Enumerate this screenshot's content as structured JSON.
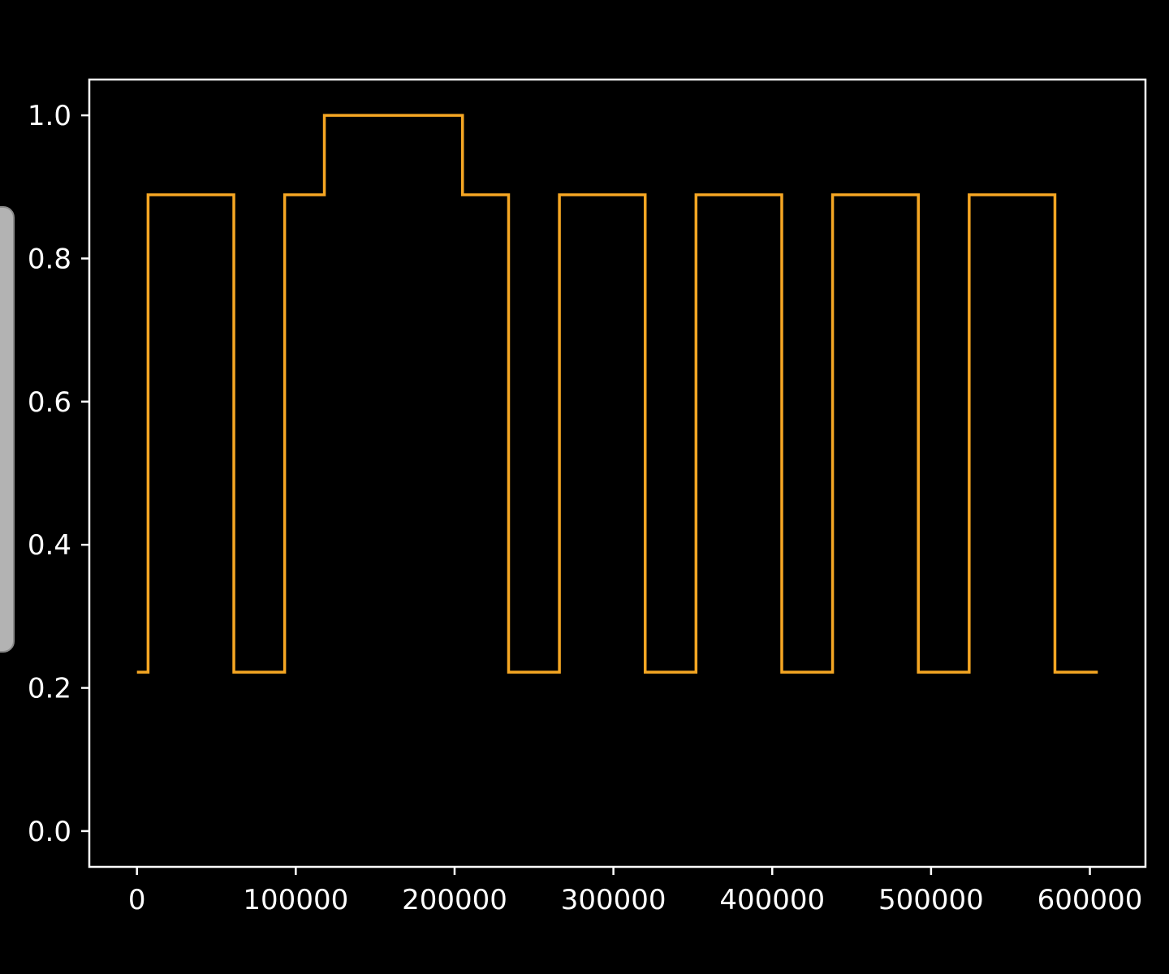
{
  "chart_data": {
    "type": "line",
    "drawstyle": "steps-post",
    "title": "",
    "xlabel": "",
    "ylabel": "",
    "xlim": [
      -30000,
      635000
    ],
    "ylim": [
      -0.05,
      1.05
    ],
    "grid": false,
    "x_ticks": [
      0,
      100000,
      200000,
      300000,
      400000,
      500000,
      600000
    ],
    "x_tick_labels": [
      "0",
      "100000",
      "200000",
      "300000",
      "400000",
      "500000",
      "600000"
    ],
    "y_ticks": [
      0.0,
      0.2,
      0.4,
      0.6,
      0.8,
      1.0
    ],
    "y_tick_labels": [
      "0.0",
      "0.2",
      "0.4",
      "0.6",
      "0.8",
      "1.0"
    ],
    "series": [
      {
        "color": "#f5a623",
        "x": [
          0,
          7000,
          61000,
          93000,
          118000,
          205000,
          234000,
          266000,
          320000,
          352000,
          406000,
          438000,
          492000,
          524000,
          578000,
          605000
        ],
        "y": [
          0.222,
          0.889,
          0.222,
          0.889,
          1.0,
          0.889,
          0.222,
          0.889,
          0.222,
          0.889,
          0.222,
          0.889,
          0.222,
          0.889,
          0.222,
          0.222
        ]
      }
    ]
  },
  "colors": {
    "background": "#000000",
    "axes": "#ffffff",
    "side_tab": "#b3b3b3"
  }
}
